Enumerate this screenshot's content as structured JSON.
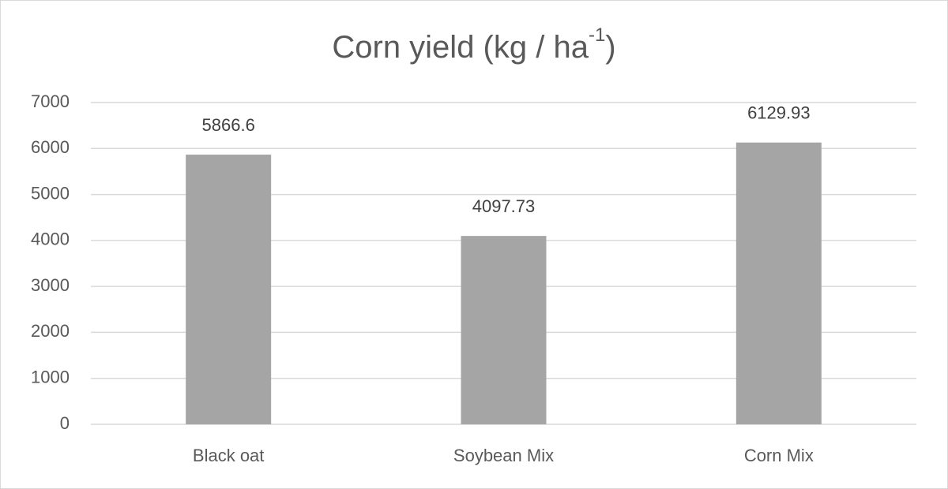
{
  "chart_data": {
    "type": "bar",
    "title": "Corn yield (kg / ha",
    "title_superscript": "-1",
    "title_suffix": ")",
    "categories": [
      "Black oat",
      "Soybean Mix",
      "Corn Mix"
    ],
    "values": [
      5866.6,
      4097.73,
      6129.93
    ],
    "color": "#a5a5a5",
    "ylim": [
      0,
      7000
    ],
    "yticks": [
      0,
      1000,
      2000,
      3000,
      4000,
      5000,
      6000,
      7000
    ],
    "grid": true,
    "data_labels": true
  }
}
